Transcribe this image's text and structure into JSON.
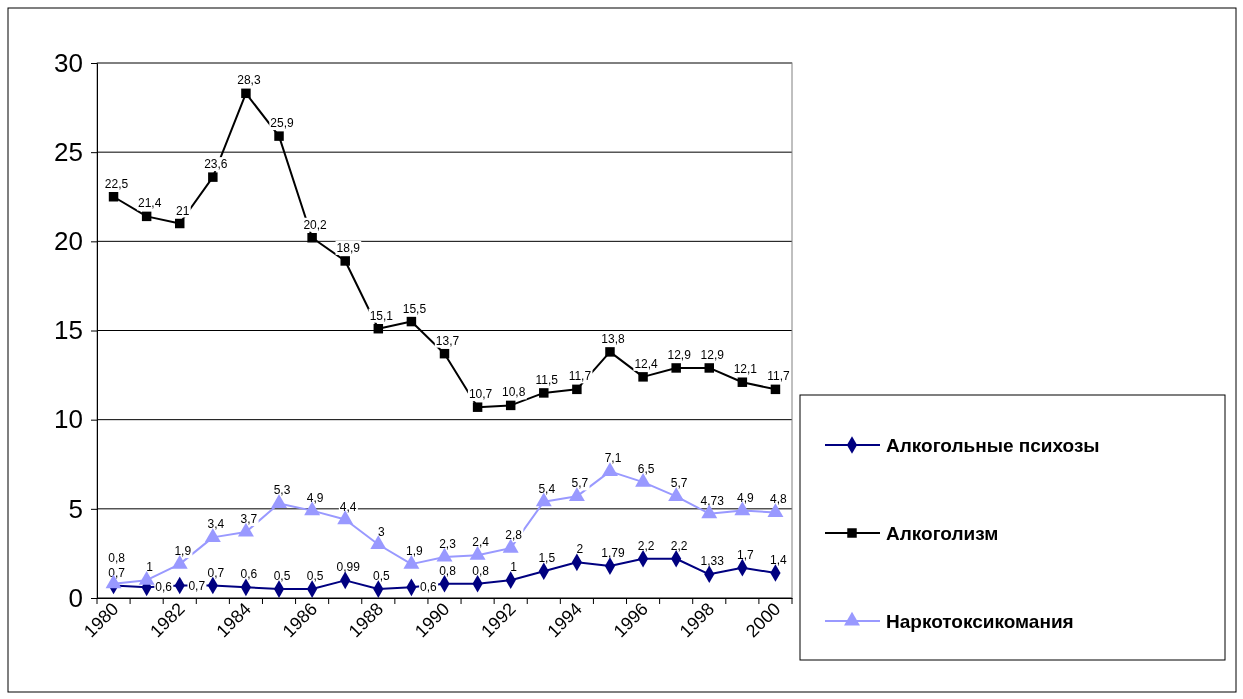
{
  "chart_data": {
    "type": "line",
    "categories": [
      "1980",
      null,
      "1982",
      null,
      "1984",
      null,
      "1986",
      null,
      "1988",
      null,
      "1990",
      null,
      "1992",
      null,
      "1994",
      null,
      "1996",
      null,
      "1998",
      null,
      "2000"
    ],
    "series": [
      {
        "name": "Алкогольные психозы",
        "color": "#000080",
        "marker": "diamond",
        "values": [
          0.7,
          0.6,
          0.7,
          0.7,
          0.6,
          0.5,
          0.5,
          0.99,
          0.5,
          0.6,
          0.8,
          0.8,
          1,
          1.5,
          2,
          1.79,
          2.2,
          2.2,
          1.33,
          1.7,
          1.4
        ],
        "value_labels": [
          "0,7",
          "0,6",
          "0,7",
          "0,7",
          "0,6",
          "0,5",
          "0,5",
          "0,99",
          "0,5",
          "0,6",
          "0,8",
          "0,8",
          "1",
          "1,5",
          "2",
          "1,79",
          "2,2",
          "2,2",
          "1,33",
          "1,7",
          "1,4"
        ]
      },
      {
        "name": "Алкоголизм",
        "color": "#000000",
        "marker": "square",
        "values": [
          22.5,
          21.4,
          21,
          23.6,
          28.3,
          25.9,
          20.2,
          18.9,
          15.1,
          15.5,
          13.7,
          10.7,
          10.8,
          11.5,
          11.7,
          13.8,
          12.4,
          12.9,
          12.9,
          12.1,
          11.7
        ],
        "value_labels": [
          "22,5",
          "21,4",
          "21",
          "23,6",
          "28,3",
          "25,9",
          "20,2",
          "18,9",
          "15,1",
          "15,5",
          "13,7",
          "10,7",
          "10,8",
          "11,5",
          "11,7",
          "13,8",
          "12,4",
          "12,9",
          "12,9",
          "12,1",
          "11,7"
        ]
      },
      {
        "name": "Наркотоксикомания",
        "color": "#9999ff",
        "marker": "triangle",
        "values": [
          0.8,
          1,
          1.9,
          3.4,
          3.7,
          5.3,
          4.9,
          4.4,
          3,
          1.9,
          2.3,
          2.4,
          2.8,
          5.4,
          5.7,
          7.1,
          6.5,
          5.7,
          4.73,
          4.9,
          4.8
        ],
        "value_labels": [
          "0,8",
          "1",
          "1,9",
          "3,4",
          "3,7",
          "5,3",
          "4,9",
          "4,4",
          "3",
          "1,9",
          "2,3",
          "2,4",
          "2,8",
          "5,4",
          "5,7",
          "7,1",
          "6,5",
          "5,7",
          "4,73",
          "4,9",
          "4,8"
        ]
      }
    ],
    "ylim": [
      0,
      30
    ],
    "yticks": [
      0,
      5,
      10,
      15,
      20,
      25,
      30
    ],
    "grid": "y",
    "legend": "right"
  }
}
